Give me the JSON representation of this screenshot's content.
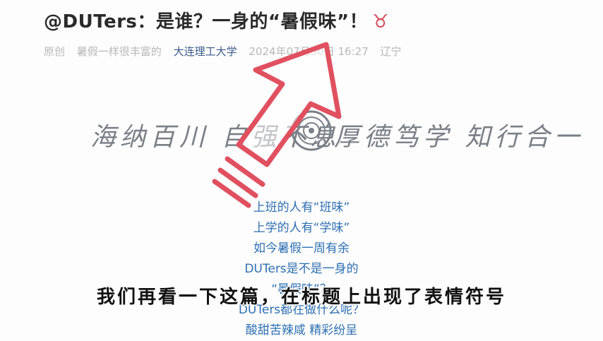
{
  "article": {
    "title": "@DUTers：是谁？一身的“暑假味”！",
    "emoji": "♉",
    "meta": {
      "label": "原创",
      "author": "暑假一样很丰富的",
      "source": "大连理工大学",
      "datetime": "2024年07月30日 16:27",
      "location": "辽宁"
    },
    "calligraphy": {
      "left": "海纳百川 自强不息",
      "right": "厚德笃学 知行合一"
    },
    "body_lines": [
      "上班的人有“班味”",
      "上学的人有“学味”",
      "如今暑假一周有余",
      "DUTers是不是一身的",
      "“暑假味”？",
      "DUTers都在做什么呢？",
      "酸甜苦辣咸 精彩纷呈"
    ]
  },
  "overlay": {
    "subtitle": "我们再看一下这篇，在标题上出现了表情符号",
    "arrow_color": "#e0505f"
  }
}
